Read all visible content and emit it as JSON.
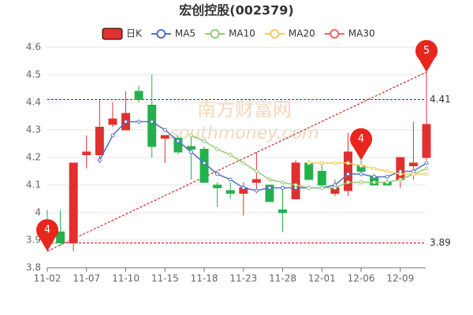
{
  "chart_data": {
    "type": "candlestick",
    "title": "宏创控股(002379)",
    "watermark": [
      "南方财富网",
      "southmoney.com"
    ],
    "categories": [
      "11-02",
      null,
      null,
      "11-07",
      null,
      null,
      "11-10",
      null,
      null,
      "11-15",
      null,
      null,
      "11-18",
      null,
      null,
      "11-23",
      null,
      null,
      "11-28",
      null,
      null,
      "12-01",
      null,
      null,
      "12-06",
      null,
      null,
      "12-09",
      null,
      null
    ],
    "series": [
      {
        "name": "日K",
        "color": "#e03030",
        "down_color": "#22b14c",
        "open": [
          3.93,
          3.93,
          3.89,
          4.21,
          4.21,
          4.32,
          4.3,
          4.44,
          4.39,
          4.27,
          4.27,
          4.24,
          4.23,
          4.1,
          4.08,
          4.07,
          4.11,
          4.1,
          4.01,
          4.05,
          4.18,
          4.15,
          4.07,
          4.08,
          4.17,
          4.13,
          4.11,
          4.12,
          4.17,
          4.2
        ],
        "high": [
          4.01,
          4.01,
          4.18,
          4.28,
          4.41,
          4.4,
          4.44,
          4.46,
          4.5,
          4.28,
          4.28,
          4.28,
          4.24,
          4.11,
          4.11,
          4.11,
          4.22,
          4.1,
          4.09,
          4.19,
          4.19,
          4.18,
          4.12,
          4.29,
          4.19,
          4.14,
          4.12,
          4.2,
          4.33,
          4.51
        ],
        "low": [
          3.86,
          3.88,
          3.86,
          4.16,
          4.18,
          4.31,
          4.3,
          4.4,
          4.2,
          4.18,
          4.21,
          4.12,
          4.11,
          4.02,
          4.05,
          3.99,
          4.07,
          4.04,
          3.93,
          4.05,
          4.12,
          4.09,
          4.06,
          4.06,
          4.14,
          4.1,
          4.1,
          4.09,
          4.12,
          4.19
        ],
        "close": [
          3.9,
          3.89,
          4.18,
          4.22,
          4.31,
          4.34,
          4.36,
          4.41,
          4.24,
          4.28,
          4.22,
          4.23,
          4.11,
          4.09,
          4.07,
          4.09,
          4.12,
          4.04,
          4.0,
          4.18,
          4.12,
          4.1,
          4.09,
          4.22,
          4.15,
          4.1,
          4.1,
          4.2,
          4.18,
          4.32
        ]
      },
      {
        "name": "MA5",
        "color": "#5470c6",
        "values": [
          null,
          null,
          null,
          null,
          4.19,
          4.28,
          4.33,
          4.33,
          4.33,
          4.3,
          4.26,
          4.22,
          4.18,
          4.14,
          4.12,
          4.09,
          4.08,
          4.09,
          4.09,
          4.09,
          4.09,
          4.09,
          4.1,
          4.14,
          4.14,
          4.13,
          4.13,
          4.15,
          4.15,
          4.18
        ]
      },
      {
        "name": "MA10",
        "color": "#91cc75",
        "values": [
          null,
          null,
          null,
          null,
          null,
          null,
          null,
          null,
          null,
          null,
          null,
          4.28,
          4.26,
          4.23,
          4.21,
          4.18,
          4.15,
          4.12,
          4.11,
          4.1,
          4.09,
          4.09,
          4.09,
          4.11,
          4.11,
          4.11,
          4.11,
          4.12,
          4.14,
          4.16
        ]
      },
      {
        "name": "MA20",
        "color": "#fac858",
        "values": [
          null,
          null,
          null,
          null,
          null,
          null,
          null,
          null,
          null,
          null,
          null,
          null,
          null,
          null,
          null,
          null,
          null,
          null,
          null,
          null,
          4.18,
          4.18,
          4.18,
          4.18,
          4.17,
          4.16,
          4.15,
          4.14,
          4.14,
          4.14
        ]
      },
      {
        "name": "MA30",
        "color": "#ee6666",
        "values": [
          null,
          null,
          null,
          null,
          null,
          null,
          null,
          null,
          null,
          null,
          null,
          null,
          null,
          null,
          null,
          null,
          null,
          null,
          null,
          null,
          null,
          null,
          null,
          null,
          null,
          null,
          null,
          null,
          null,
          null
        ]
      }
    ],
    "reference_lines": [
      {
        "value": 4.41,
        "label": "4.41",
        "color": "#cc0000"
      },
      {
        "value": 3.89,
        "label": "3.89",
        "color": "#cc0000"
      }
    ],
    "annotations": [
      {
        "text": "4",
        "index": 0,
        "value": 3.86
      },
      {
        "text": "4",
        "index": 24,
        "value": 4.19
      },
      {
        "text": "5",
        "index": 29,
        "value": 4.51
      }
    ],
    "ylim": [
      3.8,
      4.6
    ],
    "yticks": [
      3.8,
      3.9,
      4,
      4.1,
      4.2,
      4.3,
      4.4,
      4.5,
      4.6
    ],
    "grid": true
  }
}
